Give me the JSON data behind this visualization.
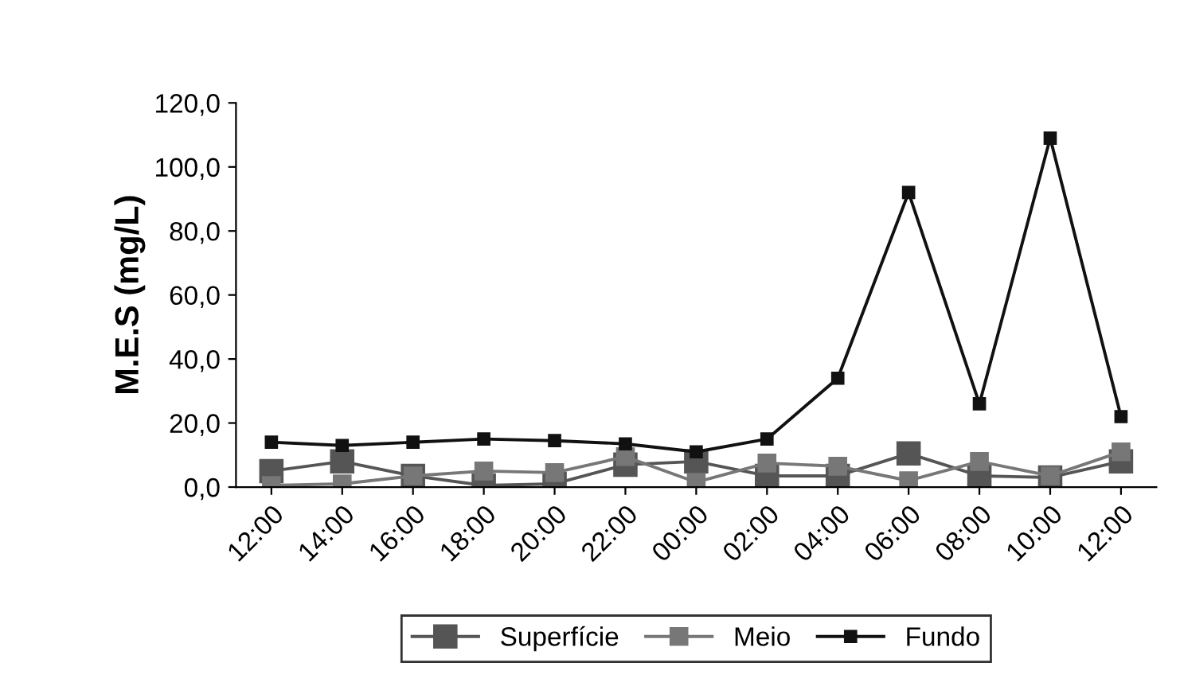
{
  "chart_data": {
    "type": "line",
    "ylabel": "M.E.S (mg/L)",
    "categories": [
      "12:00",
      "14:00",
      "16:00",
      "18:00",
      "20:00",
      "22:00",
      "00:00",
      "02:00",
      "04:00",
      "06:00",
      "08:00",
      "10:00",
      "12:00"
    ],
    "series": [
      {
        "name": "Superfície",
        "color": "#555555",
        "values": [
          5,
          8,
          3.5,
          0.5,
          1,
          7,
          8,
          3.5,
          3.5,
          10.5,
          3.5,
          3,
          8
        ]
      },
      {
        "name": "Meio",
        "color": "#777777",
        "values": [
          0.5,
          1,
          3.5,
          5,
          4.5,
          9.5,
          1.5,
          7.5,
          6.5,
          2,
          8,
          3.5,
          11
        ]
      },
      {
        "name": "Fundo",
        "color": "#111111",
        "values": [
          14,
          13,
          14,
          15,
          14.5,
          13.5,
          11,
          15,
          34,
          92,
          26,
          109,
          22
        ]
      }
    ],
    "ylim": [
      0,
      120
    ],
    "yticks": [
      {
        "value": 0,
        "label": "0,0"
      },
      {
        "value": 20,
        "label": "20,0"
      },
      {
        "value": 40,
        "label": "40,0"
      },
      {
        "value": 60,
        "label": "60,0"
      },
      {
        "value": 80,
        "label": "80,0"
      },
      {
        "value": 100,
        "label": "100,0"
      },
      {
        "value": 120,
        "label": "120,0"
      }
    ],
    "marker": "square",
    "line_style": "solid",
    "grid": false,
    "legend": "bottom"
  }
}
